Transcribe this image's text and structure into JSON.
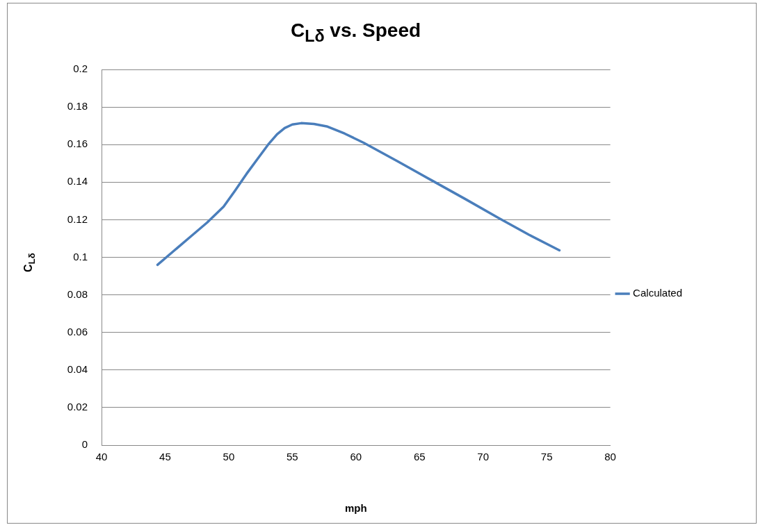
{
  "chart_data": {
    "type": "line",
    "title": "C$_{L}$$_{δ}$ vs. Speed",
    "xlabel": "mph",
    "ylabel": "C$_{L}$$_{δ}$",
    "x": [
      44.4,
      45.7,
      47,
      48.3,
      49.6,
      50.5,
      51.4,
      52.3,
      53.1,
      53.8,
      54.4,
      55,
      55.7,
      56.7,
      57.7,
      59.1,
      60.6,
      63.3,
      66,
      68.6,
      71.2,
      73.6,
      76
    ],
    "series": [
      {
        "name": "Calculated",
        "color": "#4a7ebb",
        "values": [
          0.096,
          0.1035,
          0.111,
          0.1185,
          0.127,
          0.1355,
          0.1444,
          0.1527,
          0.16,
          0.1655,
          0.1688,
          0.1707,
          0.1714,
          0.171,
          0.1697,
          0.1659,
          0.161,
          0.151,
          0.1408,
          0.131,
          0.121,
          0.112,
          0.1037
        ]
      }
    ],
    "xlim": [
      40,
      80
    ],
    "xticks": [
      40,
      45,
      50,
      55,
      60,
      65,
      70,
      75,
      80
    ],
    "ylim": [
      0,
      0.2
    ],
    "yticks": [
      0,
      0.02,
      0.04,
      0.06,
      0.08,
      0.1,
      0.12,
      0.14,
      0.16,
      0.18,
      0.2
    ],
    "grid": "y",
    "legend": "right",
    "marker": "none",
    "line_style": "solid"
  }
}
